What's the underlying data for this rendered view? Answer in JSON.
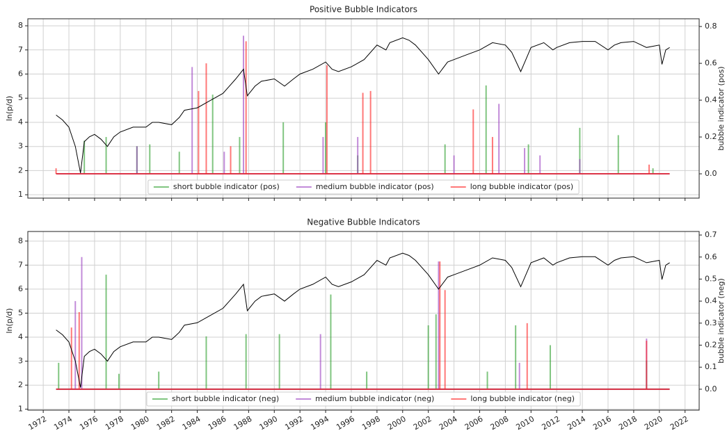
{
  "chart_data": [
    {
      "type": "line",
      "title": "Positive Bubble Indicators",
      "ylabel": "ln(p/d)",
      "y2label": "bubble indicator (pos)",
      "xlim": [
        1970.8,
        2023.1
      ],
      "xticks": [
        1972,
        1974,
        1976,
        1978,
        1980,
        1982,
        1984,
        1986,
        1988,
        1990,
        1992,
        1994,
        1996,
        1998,
        2000,
        2002,
        2004,
        2006,
        2008,
        2010,
        2012,
        2014,
        2016,
        2018,
        2020,
        2022
      ],
      "ylim": [
        0.86,
        8.29
      ],
      "yticks": [
        1,
        2,
        3,
        4,
        5,
        6,
        7,
        8
      ],
      "y2lim": [
        -0.132,
        0.842
      ],
      "y2ticks": [
        {
          "value": 0,
          "label": "0.0"
        },
        0.2,
        0.4,
        0.6,
        0.8
      ],
      "grid": true,
      "legend": "lower center",
      "series": [
        {
          "color": "#000000",
          "x": [
            1973,
            1973.5,
            1974,
            1974.5,
            1974.9,
            1975.2,
            1975.6,
            1976,
            1976.5,
            1977,
            1977.5,
            1978,
            1979,
            1980,
            1980.5,
            1981,
            1982,
            1982.6,
            1983,
            1984,
            1985,
            1986,
            1986.5,
            1987,
            1987.6,
            1987.9,
            1988.5,
            1989,
            1990,
            1990.8,
            1991.5,
            1992,
            1993,
            1994,
            1994.5,
            1995,
            1996,
            1997,
            1998,
            1998.7,
            1999,
            2000,
            2000.5,
            2001,
            2002,
            2002.8,
            2003.5,
            2004,
            2005,
            2006,
            2007,
            2008,
            2008.5,
            2009.2,
            2009.6,
            2010,
            2011,
            2011.7,
            2012,
            2013,
            2014,
            2015,
            2016,
            2016.5,
            2017,
            2018,
            2019,
            2020,
            2020.2,
            2020.5,
            2020.8
          ],
          "values": [
            4.3,
            4.1,
            3.8,
            3.0,
            1.9,
            3.2,
            3.4,
            3.5,
            3.3,
            3.0,
            3.4,
            3.6,
            3.8,
            3.8,
            4.0,
            4.0,
            3.9,
            4.2,
            4.5,
            4.6,
            4.9,
            5.2,
            5.5,
            5.8,
            6.2,
            5.1,
            5.5,
            5.7,
            5.8,
            5.5,
            5.8,
            6.0,
            6.2,
            6.5,
            6.2,
            6.1,
            6.3,
            6.6,
            7.2,
            7.0,
            7.3,
            7.5,
            7.4,
            7.2,
            6.6,
            6.0,
            6.5,
            6.6,
            6.8,
            7.0,
            7.3,
            7.2,
            6.9,
            6.1,
            6.6,
            7.1,
            7.3,
            7.0,
            7.1,
            7.3,
            7.35,
            7.35,
            7.0,
            7.2,
            7.3,
            7.35,
            7.1,
            7.2,
            6.4,
            7.0,
            7.1
          ]
        },
        {
          "name": "short bubble indicator (pos)",
          "color": "#2ca02c",
          "axis": "y2",
          "x": [
            1975.2,
            1976.9,
            1979.3,
            1980.3,
            1982.6,
            1985.2,
            1987.3,
            1990.7,
            1994.0,
            1996.5,
            2003.3,
            2006.5,
            2009.8,
            2013.8,
            2016.8,
            2019.5
          ],
          "values": [
            0.18,
            0.2,
            0.15,
            0.16,
            0.12,
            0.43,
            0.2,
            0.28,
            0.28,
            0.1,
            0.16,
            0.48,
            0.16,
            0.25,
            0.21,
            0.03
          ]
        },
        {
          "name": "medium bubble indicator (pos)",
          "color": "#9b3fc0",
          "axis": "y2",
          "x": [
            1979.3,
            1983.6,
            1986.1,
            1987.6,
            1993.8,
            1996.5,
            2004.0,
            2007.5,
            2009.5,
            2010.7,
            2013.8
          ],
          "values": [
            0.15,
            0.58,
            0.12,
            0.75,
            0.2,
            0.2,
            0.1,
            0.38,
            0.14,
            0.1,
            0.08
          ]
        },
        {
          "name": "long bubble indicator (pos)",
          "color": "#ff2020",
          "axis": "y2",
          "x": [
            1973.0,
            1984.1,
            1984.7,
            1986.6,
            1987.8,
            1994.1,
            1996.9,
            1997.5,
            2005.5,
            2007.0,
            2019.2
          ],
          "values": [
            0.03,
            0.45,
            0.6,
            0.15,
            0.72,
            0.59,
            0.44,
            0.45,
            0.35,
            0.2,
            0.05
          ]
        }
      ]
    },
    {
      "type": "line",
      "title": "Negative Bubble Indicators",
      "ylabel": "ln(p/d)",
      "y2label": "bubble indicator (neg)",
      "xlim": [
        1970.8,
        2023.1
      ],
      "xticks": [
        1972,
        1974,
        1976,
        1978,
        1980,
        1982,
        1984,
        1986,
        1988,
        1990,
        1992,
        1994,
        1996,
        1998,
        2000,
        2002,
        2004,
        2006,
        2008,
        2010,
        2012,
        2014,
        2016,
        2018,
        2020,
        2022
      ],
      "ylim": [
        0.96,
        8.4
      ],
      "yticks": [
        1,
        2,
        3,
        4,
        5,
        6,
        7,
        8
      ],
      "y2lim": [
        -0.095,
        0.716
      ],
      "y2ticks": [
        {
          "value": 0,
          "label": "0.0"
        },
        0.1,
        0.2,
        0.3,
        0.4,
        0.5,
        0.6,
        0.7
      ],
      "grid": true,
      "legend": "lower center",
      "series": [
        {
          "color": "#000000",
          "x": [
            1973,
            1973.5,
            1974,
            1974.5,
            1974.9,
            1975.2,
            1975.6,
            1976,
            1976.5,
            1977,
            1977.5,
            1978,
            1979,
            1980,
            1980.5,
            1981,
            1982,
            1982.6,
            1983,
            1984,
            1985,
            1986,
            1986.5,
            1987,
            1987.6,
            1987.9,
            1988.5,
            1989,
            1990,
            1990.8,
            1991.5,
            1992,
            1993,
            1994,
            1994.5,
            1995,
            1996,
            1997,
            1998,
            1998.7,
            1999,
            2000,
            2000.5,
            2001,
            2002,
            2002.8,
            2003.5,
            2004,
            2005,
            2006,
            2007,
            2008,
            2008.5,
            2009.2,
            2009.6,
            2010,
            2011,
            2011.7,
            2012,
            2013,
            2014,
            2015,
            2016,
            2016.5,
            2017,
            2018,
            2019,
            2020,
            2020.2,
            2020.5,
            2020.8
          ],
          "values": [
            4.3,
            4.1,
            3.8,
            3.0,
            1.9,
            3.2,
            3.4,
            3.5,
            3.3,
            3.0,
            3.4,
            3.6,
            3.8,
            3.8,
            4.0,
            4.0,
            3.9,
            4.2,
            4.5,
            4.6,
            4.9,
            5.2,
            5.5,
            5.8,
            6.2,
            5.1,
            5.5,
            5.7,
            5.8,
            5.5,
            5.8,
            6.0,
            6.2,
            6.5,
            6.2,
            6.1,
            6.3,
            6.6,
            7.2,
            7.0,
            7.3,
            7.5,
            7.4,
            7.2,
            6.6,
            6.0,
            6.5,
            6.6,
            6.8,
            7.0,
            7.3,
            7.2,
            6.9,
            6.1,
            6.6,
            7.1,
            7.3,
            7.0,
            7.1,
            7.3,
            7.35,
            7.35,
            7.0,
            7.2,
            7.3,
            7.35,
            7.1,
            7.2,
            6.4,
            7.0,
            7.1
          ]
        },
        {
          "name": "short bubble indicator (neg)",
          "color": "#2ca02c",
          "axis": "y2",
          "x": [
            1973.2,
            1976.9,
            1977.9,
            1981.0,
            1984.7,
            1987.8,
            1990.4,
            1994.4,
            1997.2,
            2002.0,
            2002.6,
            2006.6,
            2008.8,
            2011.5,
            2019.0
          ],
          "values": [
            0.12,
            0.52,
            0.07,
            0.08,
            0.24,
            0.25,
            0.25,
            0.43,
            0.08,
            0.29,
            0.34,
            0.08,
            0.29,
            0.2,
            0.13
          ]
        },
        {
          "name": "medium bubble indicator (neg)",
          "color": "#9b3fc0",
          "axis": "y2",
          "x": [
            1974.5,
            1975.0,
            1993.6,
            2002.8,
            2009.1,
            2019.0
          ],
          "values": [
            0.4,
            0.6,
            0.25,
            0.58,
            0.12,
            0.23
          ]
        },
        {
          "name": "long bubble indicator (neg)",
          "color": "#ff2020",
          "axis": "y2",
          "x": [
            1974.2,
            1974.8,
            2002.9,
            2003.3,
            2009.7,
            2019.0
          ],
          "values": [
            0.28,
            0.35,
            0.58,
            0.45,
            0.3,
            0.22
          ]
        }
      ]
    }
  ]
}
